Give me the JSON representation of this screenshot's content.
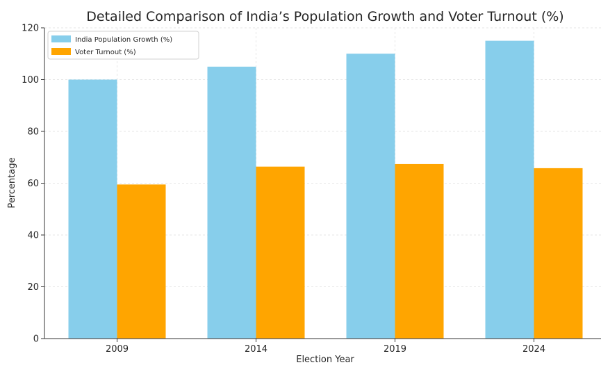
{
  "chart_data": {
    "type": "bar",
    "title": "Detailed Comparison of India’s Population Growth and Voter Turnout (%)",
    "xlabel": "Election Year",
    "ylabel": "Percentage",
    "categories": [
      "2009",
      "2014",
      "2019",
      "2024"
    ],
    "series": [
      {
        "name": "India Population Growth (%)",
        "values": [
          100,
          105,
          110,
          115
        ],
        "color": "#87ceeb"
      },
      {
        "name": "Voter Turnout (%)",
        "values": [
          59.5,
          66.4,
          67.4,
          65.8
        ],
        "color": "#ffa500"
      }
    ],
    "ylim": [
      0,
      120
    ],
    "yticks": [
      0,
      20,
      40,
      60,
      80,
      100,
      120
    ],
    "grid": true,
    "legend": "top-left"
  }
}
